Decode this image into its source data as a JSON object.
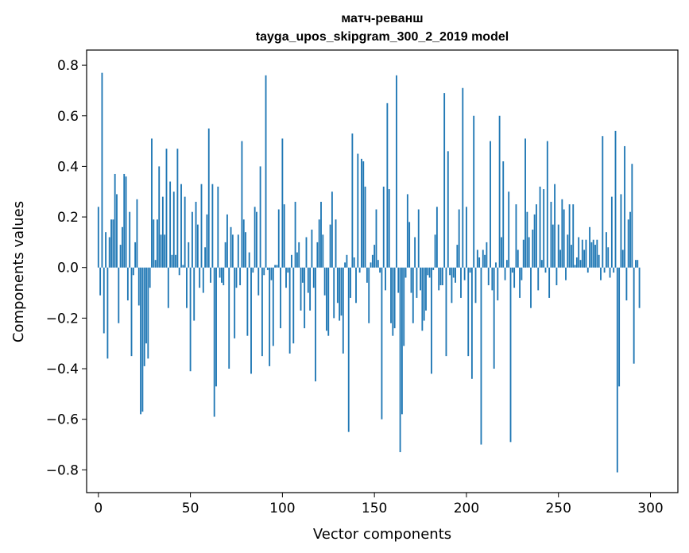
{
  "chart_data": {
    "type": "bar",
    "title_line1": "матч-реванш",
    "title_line2": "tayga_upos_skipgram_300_2_2019 model",
    "xlabel": "Vector components",
    "ylabel": "Components values",
    "xlim": [
      -6.4,
      314.9
    ],
    "ylim": [
      -0.89,
      0.86
    ],
    "xticks": [
      0,
      50,
      100,
      150,
      200,
      250,
      300
    ],
    "xtick_labels": [
      "0",
      "50",
      "100",
      "150",
      "200",
      "250",
      "300"
    ],
    "yticks": [
      -0.8,
      -0.6,
      -0.4,
      -0.2,
      0.0,
      0.2,
      0.4,
      0.6,
      0.8
    ],
    "ytick_labels": [
      "−0.8",
      "−0.6",
      "−0.4",
      "−0.2",
      "0.0",
      "0.2",
      "0.4",
      "0.6",
      "0.8"
    ],
    "bar_color": "#1f77b4",
    "values": [
      0.24,
      -0.11,
      0.77,
      -0.26,
      0.14,
      -0.36,
      0.12,
      0.19,
      0.19,
      0.37,
      0.29,
      -0.22,
      0.09,
      0.16,
      0.37,
      0.36,
      -0.13,
      0.22,
      -0.35,
      -0.03,
      0.1,
      0.27,
      -0.15,
      -0.58,
      -0.57,
      -0.39,
      -0.3,
      -0.36,
      -0.08,
      0.51,
      0.19,
      0.03,
      0.19,
      0.4,
      0.13,
      0.28,
      0.13,
      0.47,
      -0.16,
      0.34,
      0.05,
      0.3,
      0.05,
      0.47,
      -0.03,
      0.33,
      0.01,
      0.28,
      -0.16,
      0.1,
      -0.41,
      0.22,
      -0.21,
      0.26,
      0.17,
      -0.08,
      0.33,
      -0.1,
      0.08,
      0.21,
      0.55,
      -0.06,
      0.33,
      -0.59,
      -0.47,
      0.32,
      -0.04,
      -0.06,
      -0.07,
      0.1,
      0.21,
      -0.4,
      0.16,
      0.13,
      -0.28,
      -0.08,
      0.13,
      -0.07,
      0.5,
      0.19,
      0.14,
      -0.27,
      0.06,
      -0.42,
      -0.02,
      0.24,
      0.22,
      -0.11,
      0.4,
      -0.35,
      -0.03,
      0.76,
      -0.01,
      -0.39,
      -0.05,
      -0.31,
      0.01,
      0.01,
      0.23,
      -0.24,
      0.51,
      0.25,
      -0.08,
      -0.02,
      -0.34,
      0.05,
      -0.3,
      0.26,
      0.06,
      0.1,
      -0.17,
      -0.06,
      -0.24,
      0.12,
      -0.1,
      -0.17,
      0.15,
      -0.08,
      -0.45,
      0.1,
      0.19,
      0.26,
      0.13,
      -0.11,
      -0.25,
      -0.27,
      0.17,
      0.3,
      -0.2,
      0.19,
      -0.14,
      -0.21,
      -0.19,
      -0.34,
      0.02,
      0.05,
      -0.65,
      -0.12,
      0.53,
      0.04,
      -0.14,
      0.45,
      -0.02,
      0.43,
      0.42,
      0.32,
      -0.06,
      -0.22,
      0.02,
      0.05,
      0.09,
      0.23,
      0.03,
      -0.02,
      -0.6,
      0.32,
      -0.09,
      0.65,
      0.31,
      -0.22,
      -0.27,
      -0.24,
      0.76,
      -0.1,
      -0.73,
      -0.58,
      -0.31,
      -0.04,
      0.29,
      0.18,
      -0.1,
      -0.22,
      0.12,
      -0.12,
      0.23,
      -0.09,
      -0.25,
      -0.21,
      -0.17,
      -0.03,
      -0.04,
      -0.42,
      -0.01,
      0.13,
      0.24,
      -0.09,
      -0.07,
      -0.07,
      0.69,
      -0.35,
      0.46,
      -0.03,
      -0.14,
      -0.04,
      -0.06,
      0.09,
      0.23,
      -0.12,
      0.71,
      -0.05,
      0.24,
      -0.35,
      -0.02,
      -0.44,
      0.6,
      -0.14,
      0.07,
      0.04,
      -0.7,
      0.07,
      0.05,
      0.1,
      -0.07,
      0.5,
      -0.09,
      -0.4,
      0.02,
      -0.13,
      0.6,
      0.12,
      0.42,
      -0.05,
      0.03,
      0.3,
      -0.69,
      -0.02,
      -0.08,
      0.25,
      0.07,
      -0.12,
      -0.05,
      0.11,
      0.51,
      0.22,
      0.12,
      -0.16,
      0.15,
      0.21,
      0.25,
      -0.09,
      0.32,
      0.03,
      0.31,
      -0.02,
      0.5,
      -0.12,
      0.26,
      0.17,
      0.33,
      -0.07,
      0.17,
      0.07,
      0.27,
      0.23,
      -0.05,
      0.13,
      0.25,
      0.09,
      0.25,
      0.01,
      0.04,
      0.12,
      0.03,
      0.11,
      0.07,
      0.11,
      -0.02,
      0.16,
      0.1,
      0.11,
      0.09,
      0.11,
      0.05,
      -0.05,
      0.52,
      -0.02,
      0.14,
      0.08,
      -0.04,
      0.28,
      -0.02,
      0.54,
      -0.81,
      -0.47,
      0.29,
      0.07,
      0.48,
      -0.13,
      0.19,
      0.22,
      0.41,
      -0.38,
      0.03,
      0.03,
      -0.16
    ]
  }
}
